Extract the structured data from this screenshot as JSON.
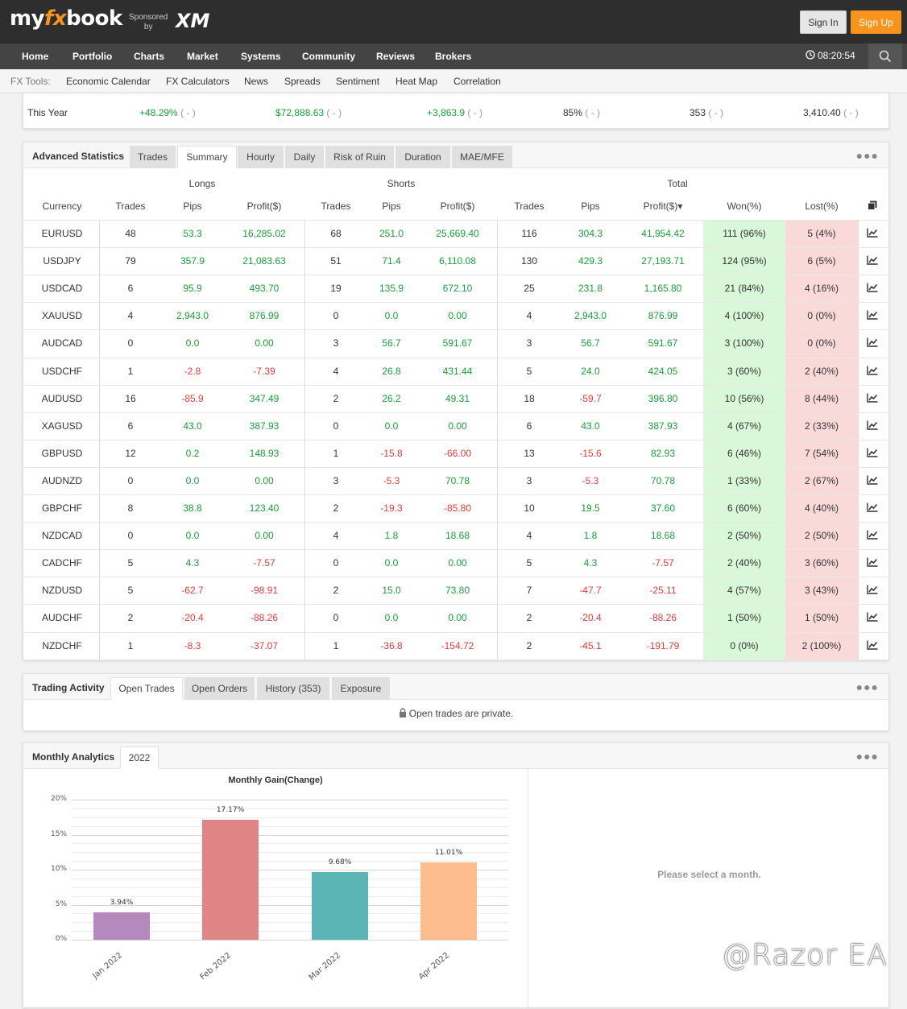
{
  "header": {
    "logo_my": "my",
    "logo_fx": "fx",
    "logo_book": "book",
    "sponsored_line1": "Sponsored",
    "sponsored_line2": "by",
    "sponsor": "XM",
    "signin_label": "Sign In",
    "signup_label": "Sign Up"
  },
  "nav": {
    "items": [
      "Home",
      "Portfolio",
      "Charts",
      "Market",
      "Systems",
      "Community",
      "Reviews",
      "Brokers"
    ],
    "time": "08:20:54"
  },
  "tools": {
    "label": "FX Tools:",
    "items": [
      "Economic Calendar",
      "FX Calculators",
      "News",
      "Spreads",
      "Sentiment",
      "Heat Map",
      "Correlation"
    ]
  },
  "this_year": {
    "label": "This Year",
    "gain": "+48.29%",
    "profit": "$72,888.63",
    "pips": "+3,863.9",
    "won": "85%",
    "trades": "353",
    "lots": "3,410.40",
    "suffix": "( - )"
  },
  "advanced": {
    "title": "Advanced Statistics",
    "tabs": [
      "Trades",
      "Summary",
      "Hourly",
      "Daily",
      "Risk of Ruin",
      "Duration",
      "MAE/MFE"
    ],
    "active_tab": "Summary",
    "groups": {
      "longs": "Longs",
      "shorts": "Shorts",
      "total": "Total"
    },
    "columns": [
      "Currency",
      "Trades",
      "Pips",
      "Profit($)",
      "Trades",
      "Pips",
      "Profit($)",
      "Trades",
      "Pips",
      "Profit($)▾",
      "Won(%)",
      "Lost(%)"
    ],
    "rows": [
      [
        "EURUSD",
        "48",
        "53.3",
        "16,285.02",
        "68",
        "251.0",
        "25,669.40",
        "116",
        "304.3",
        "41,954.42",
        "111 (96%)",
        "5 (4%)"
      ],
      [
        "USDJPY",
        "79",
        "357.9",
        "21,083.63",
        "51",
        "71.4",
        "6,110.08",
        "130",
        "429.3",
        "27,193.71",
        "124 (95%)",
        "6 (5%)"
      ],
      [
        "USDCAD",
        "6",
        "95.9",
        "493.70",
        "19",
        "135.9",
        "672.10",
        "25",
        "231.8",
        "1,165.80",
        "21 (84%)",
        "4 (16%)"
      ],
      [
        "XAUUSD",
        "4",
        "2,943.0",
        "876.99",
        "0",
        "0.0",
        "0.00",
        "4",
        "2,943.0",
        "876.99",
        "4 (100%)",
        "0 (0%)"
      ],
      [
        "AUDCAD",
        "0",
        "0.0",
        "0.00",
        "3",
        "56.7",
        "591.67",
        "3",
        "56.7",
        "591.67",
        "3 (100%)",
        "0 (0%)"
      ],
      [
        "USDCHF",
        "1",
        "-2.8",
        "-7.39",
        "4",
        "26.8",
        "431.44",
        "5",
        "24.0",
        "424.05",
        "3 (60%)",
        "2 (40%)"
      ],
      [
        "AUDUSD",
        "16",
        "-85.9",
        "347.49",
        "2",
        "26.2",
        "49.31",
        "18",
        "-59.7",
        "396.80",
        "10 (56%)",
        "8 (44%)"
      ],
      [
        "XAGUSD",
        "6",
        "43.0",
        "387.93",
        "0",
        "0.0",
        "0.00",
        "6",
        "43.0",
        "387.93",
        "4 (67%)",
        "2 (33%)"
      ],
      [
        "GBPUSD",
        "12",
        "0.2",
        "148.93",
        "1",
        "-15.8",
        "-66.00",
        "13",
        "-15.6",
        "82.93",
        "6 (46%)",
        "7 (54%)"
      ],
      [
        "AUDNZD",
        "0",
        "0.0",
        "0.00",
        "3",
        "-5.3",
        "70.78",
        "3",
        "-5.3",
        "70.78",
        "1 (33%)",
        "2 (67%)"
      ],
      [
        "GBPCHF",
        "8",
        "38.8",
        "123.40",
        "2",
        "-19.3",
        "-85.80",
        "10",
        "19.5",
        "37.60",
        "6 (60%)",
        "4 (40%)"
      ],
      [
        "NZDCAD",
        "0",
        "0.0",
        "0.00",
        "4",
        "1.8",
        "18.68",
        "4",
        "1.8",
        "18.68",
        "2 (50%)",
        "2 (50%)"
      ],
      [
        "CADCHF",
        "5",
        "4.3",
        "-7.57",
        "0",
        "0.0",
        "0.00",
        "5",
        "4.3",
        "-7.57",
        "2 (40%)",
        "3 (60%)"
      ],
      [
        "NZDUSD",
        "5",
        "-62.7",
        "-98.91",
        "2",
        "15.0",
        "73.80",
        "7",
        "-47.7",
        "-25.11",
        "4 (57%)",
        "3 (43%)"
      ],
      [
        "AUDCHF",
        "2",
        "-20.4",
        "-88.26",
        "0",
        "0.0",
        "0.00",
        "2",
        "-20.4",
        "-88.26",
        "1 (50%)",
        "1 (50%)"
      ],
      [
        "NZDCHF",
        "1",
        "-8.3",
        "-37.07",
        "1",
        "-36.8",
        "-154.72",
        "2",
        "-45.1",
        "-191.79",
        "0 (0%)",
        "2 (100%)"
      ]
    ]
  },
  "activity": {
    "title": "Trading Activity",
    "tabs": [
      "Open Trades",
      "Open Orders",
      "History (353)",
      "Exposure"
    ],
    "active_tab": "Open Trades",
    "private_msg": "Open trades are private."
  },
  "monthly": {
    "title": "Monthly Analytics",
    "tab": "2022",
    "select_msg": "Please select a month."
  },
  "chart_data": {
    "type": "bar",
    "title": "Monthly Gain(Change)",
    "categories": [
      "Jan 2022",
      "Feb 2022",
      "Mar 2022",
      "Apr 2022"
    ],
    "values": [
      3.94,
      17.17,
      9.68,
      11.01
    ],
    "data_labels": [
      "3.94%",
      "17.17%",
      "9.68%",
      "11.01%"
    ],
    "colors": [
      "#b589bd",
      "#e08585",
      "#5bb5b5",
      "#fdbd8e"
    ],
    "yticks": [
      "0%",
      "5%",
      "10%",
      "15%",
      "20%"
    ],
    "ylim": [
      0,
      20
    ],
    "grid": true
  },
  "watermark": "@Razor EA"
}
